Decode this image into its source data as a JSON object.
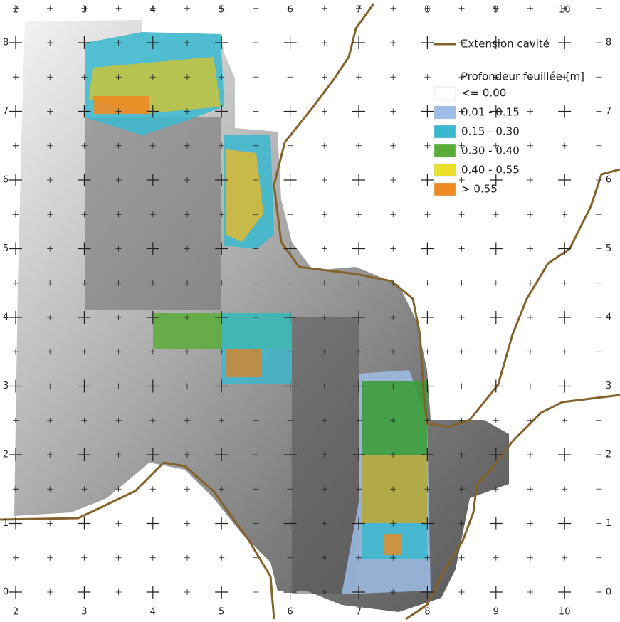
{
  "map": {
    "x_ticks": [
      2,
      3,
      4,
      5,
      6,
      7,
      8,
      9,
      10
    ],
    "y_ticks": [
      0,
      1,
      2,
      3,
      4,
      5,
      6,
      7,
      8
    ],
    "line_color": "#85622a",
    "legend": {
      "line_label": "Extension cavité",
      "title": "Profondeur fouillée [m]",
      "classes": [
        {
          "label": "<= 0.00",
          "color": "#ffffff"
        },
        {
          "label": "0.01 - 0.15",
          "color": "#9dbde6"
        },
        {
          "label": "0.15 - 0.30",
          "color": "#3ab8cf"
        },
        {
          "label": "0.30 - 0.40",
          "color": "#5aae38"
        },
        {
          "label": "0.40 - 0.55",
          "color": "#e8e02a"
        },
        {
          "label": "> 0.55",
          "color": "#ee8a22"
        }
      ]
    }
  }
}
